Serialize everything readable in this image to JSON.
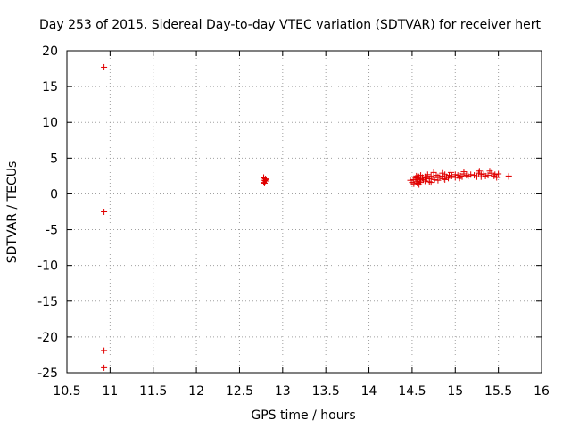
{
  "chart_data": {
    "type": "scatter",
    "title": "Day 253 of 2015, Sidereal Day-to-day VTEC variation (SDTVAR) for receiver hert",
    "xlabel": "GPS time / hours",
    "ylabel": "SDTVAR / TECUs",
    "xlim": [
      10.5,
      16
    ],
    "ylim": [
      -25,
      20
    ],
    "xticks": [
      "10.5",
      "11",
      "11.5",
      "12",
      "12.5",
      "13",
      "13.5",
      "14",
      "14.5",
      "15",
      "15.5",
      "16"
    ],
    "yticks": [
      "-25",
      "-20",
      "-15",
      "-10",
      "-5",
      "0",
      "5",
      "10",
      "15",
      "20"
    ],
    "grid": true,
    "marker": "+",
    "color": "#e00000",
    "series": [
      {
        "name": "SDTVAR",
        "x": [
          10.93,
          10.93,
          10.93,
          10.93,
          12.78,
          12.79,
          12.8,
          12.78,
          12.8,
          12.79,
          12.81,
          12.78,
          14.48,
          14.5,
          14.52,
          14.54,
          14.55,
          14.56,
          14.57,
          14.58,
          14.59,
          14.6,
          14.62,
          14.63,
          14.65,
          14.67,
          14.7,
          14.72,
          14.75,
          14.78,
          14.8,
          14.82,
          14.85,
          14.88,
          14.9,
          14.93,
          14.96,
          15.0,
          15.03,
          15.06,
          15.1,
          15.13,
          15.18,
          15.22,
          15.27,
          15.3,
          15.33,
          15.38,
          15.42,
          15.46,
          15.5,
          15.62,
          14.52,
          14.56,
          14.6,
          14.65,
          14.7,
          14.76,
          14.8,
          14.86,
          14.92,
          15.0,
          15.08,
          15.15,
          15.25,
          15.35,
          15.45,
          15.62,
          14.55,
          14.6,
          14.68,
          14.75,
          14.85,
          14.95,
          15.1,
          15.28,
          15.4,
          14.58,
          14.72,
          14.88,
          15.05,
          15.3,
          15.48
        ],
        "y": [
          17.7,
          -2.5,
          -21.9,
          -24.3,
          1.6,
          1.9,
          2.1,
          2.3,
          1.8,
          1.5,
          2.0,
          2.2,
          1.9,
          1.6,
          2.0,
          2.2,
          1.7,
          2.3,
          2.0,
          2.4,
          1.8,
          2.1,
          2.3,
          2.0,
          2.4,
          2.2,
          2.1,
          2.5,
          2.3,
          2.6,
          2.4,
          2.3,
          2.5,
          2.7,
          2.4,
          2.6,
          2.5,
          2.7,
          2.6,
          2.5,
          2.8,
          2.6,
          2.7,
          2.6,
          2.9,
          2.7,
          2.8,
          2.6,
          2.9,
          2.7,
          2.8,
          2.5,
          1.4,
          1.5,
          1.6,
          1.8,
          1.7,
          2.0,
          1.9,
          2.1,
          2.2,
          2.3,
          2.4,
          2.5,
          2.4,
          2.5,
          2.5,
          2.4,
          2.5,
          2.6,
          2.7,
          3.0,
          2.9,
          3.0,
          3.1,
          3.2,
          3.2,
          1.3,
          1.6,
          2.0,
          2.2,
          2.4,
          2.3
        ]
      }
    ]
  }
}
